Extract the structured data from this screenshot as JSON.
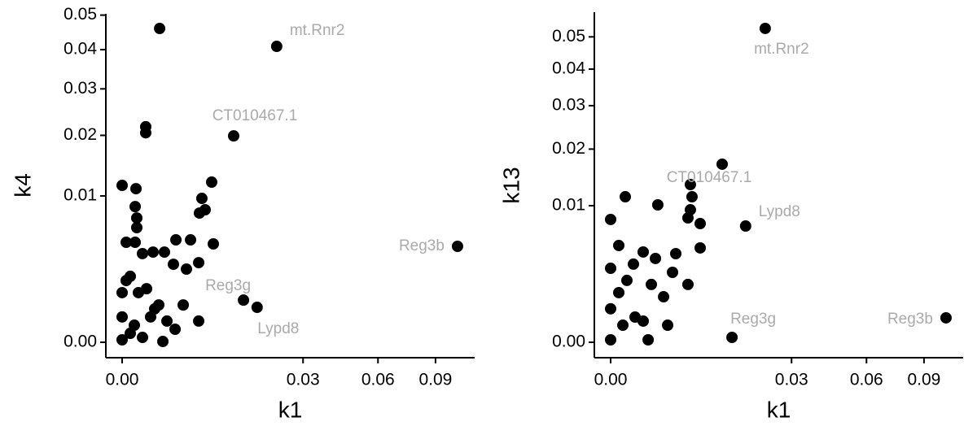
{
  "chart_data": [
    {
      "type": "scatter",
      "xlabel": "k1",
      "ylabel": "k4",
      "xscale": "sqrt",
      "yscale": "sqrt",
      "color": "#000000",
      "label_color": "#aaaaaa",
      "xlim": [
        0,
        0.1139
      ],
      "ylim": [
        0,
        0.0504
      ],
      "xticks": [
        {
          "value": 0,
          "label": "0.00"
        },
        {
          "value": 0.03,
          "label": "0.03"
        },
        {
          "value": 0.06,
          "label": "0.06"
        },
        {
          "value": 0.09,
          "label": "0.09"
        }
      ],
      "yticks": [
        {
          "value": 0,
          "label": "0.00"
        },
        {
          "value": 0.01,
          "label": "0.01"
        },
        {
          "value": 0.02,
          "label": "0.02"
        },
        {
          "value": 0.03,
          "label": "0.03"
        },
        {
          "value": 0.04,
          "label": "0.04"
        },
        {
          "value": 0.05,
          "label": "0.05"
        }
      ],
      "x": [
        0,
        0.000176,
        0.000156,
        0.000197,
        0.000197,
        1.52e-05,
        0.000156,
        0.00038,
        0.000877,
        0.00164,
        0.00265,
        0.00429,
        0.00583,
        0.00548,
        0.00632,
        0.00735,
        0.00762,
        0.00537,
        0.00379,
        0.00241,
        6.08e-05,
        0.000547,
        0.00123,
        0.00184,
        0.00537,
        0.00257,
        0.000972,
        0.000243,
        1.52e-05,
        0.000744,
        6.08e-05,
        0,
        0.00038,
        0.00152,
        0,
        0,
        0.000137,
        0.00342,
        0.00129,
        0.00051,
        0.00051,
        0.0219,
        0.0114,
        0.1031,
        0.0135,
        0.0167
      ],
      "y": [
        0.0115,
        0.01102,
        0.0086,
        0.00722,
        0.00614,
        0.00467,
        0.00467,
        0.00367,
        0.0038,
        0.0038,
        0.0049,
        0.0049,
        0.00967,
        0.0078,
        0.0082,
        0.01198,
        0.00452,
        0.00296,
        0.0025,
        0.00284,
        0.00203,
        0.00134,
        0.00065,
        0.00021,
        0.00021,
        7.9e-05,
        0.00052,
        0.00115,
        0.00178,
        0.0003,
        3.7e-05,
        2.8e-06,
        1.1e-05,
        3e-07,
        0.0003,
        0.00115,
        0.000136,
        0.00065,
        0.046,
        0.0217,
        0.0205,
        0.0409,
        0.0199,
        0.0043,
        0.00083,
        0.00057
      ],
      "labels": [
        null,
        null,
        null,
        null,
        null,
        null,
        null,
        null,
        null,
        null,
        null,
        null,
        null,
        null,
        null,
        null,
        null,
        null,
        null,
        null,
        null,
        null,
        null,
        null,
        null,
        null,
        null,
        null,
        null,
        null,
        null,
        null,
        null,
        null,
        null,
        null,
        null,
        null,
        null,
        null,
        null,
        "mt.Rnr2",
        "CT010467.1",
        "Reg3b",
        "Reg3g",
        "Lypd8"
      ]
    },
    {
      "type": "scatter",
      "xlabel": "k1",
      "ylabel": "k13",
      "xscale": "sqrt",
      "yscale": "sqrt",
      "color": "#000000",
      "label_color": "#aaaaaa",
      "xlim": [
        0,
        0.1139
      ],
      "ylim": [
        0,
        0.0584
      ],
      "xticks": [
        {
          "value": 0,
          "label": "0.00"
        },
        {
          "value": 0.03,
          "label": "0.03"
        },
        {
          "value": 0.06,
          "label": "0.06"
        },
        {
          "value": 0.09,
          "label": "0.09"
        }
      ],
      "yticks": [
        {
          "value": 0,
          "label": "0.00"
        },
        {
          "value": 0.01,
          "label": "0.01"
        },
        {
          "value": 0.02,
          "label": "0.02"
        },
        {
          "value": 0.03,
          "label": "0.03"
        },
        {
          "value": 0.04,
          "label": "0.04"
        },
        {
          "value": 0.05,
          "label": "0.05"
        }
      ],
      "x": [
        0,
        0.000197,
        0.00204,
        6.08e-05,
        0.000476,
        0.000972,
        0.00184,
        0.00389,
        0.00583,
        0.00607,
        0.00583,
        0.00548,
        0.00735,
        0.00735,
        0.00548,
        0.00351,
        0.00257,
        0.00129,
        0.000547,
        6.08e-05,
        0,
        0,
        0.000137,
        0,
        0.000972,
        0.000243,
        0.00152,
        0.00298,
        0.0219,
        0.0114,
        0.1031,
        0.0135,
        0.0167
      ],
      "y": [
        0.00808,
        0.01135,
        0.01012,
        0.00502,
        0.00327,
        0.00437,
        0.00376,
        0.00421,
        0.01333,
        0.01135,
        0.00941,
        0.00829,
        0.00755,
        0.00477,
        0.00179,
        0.00262,
        0.00111,
        3.2e-06,
        0.00034,
        0.00132,
        0.00293,
        0.0006,
        0.000156,
        3.2e-06,
        0.00024,
        0.00205,
        0.00179,
        0.000156,
        0.0528,
        0.017,
        0.00032,
        1.28e-05,
        0.00724
      ],
      "labels": [
        null,
        null,
        null,
        null,
        null,
        null,
        null,
        null,
        null,
        null,
        null,
        null,
        null,
        null,
        null,
        null,
        null,
        null,
        null,
        null,
        null,
        null,
        null,
        null,
        null,
        null,
        null,
        null,
        "mt.Rnr2",
        "CT010467.1",
        "Reg3b",
        "Reg3g",
        "Lypd8"
      ]
    }
  ]
}
